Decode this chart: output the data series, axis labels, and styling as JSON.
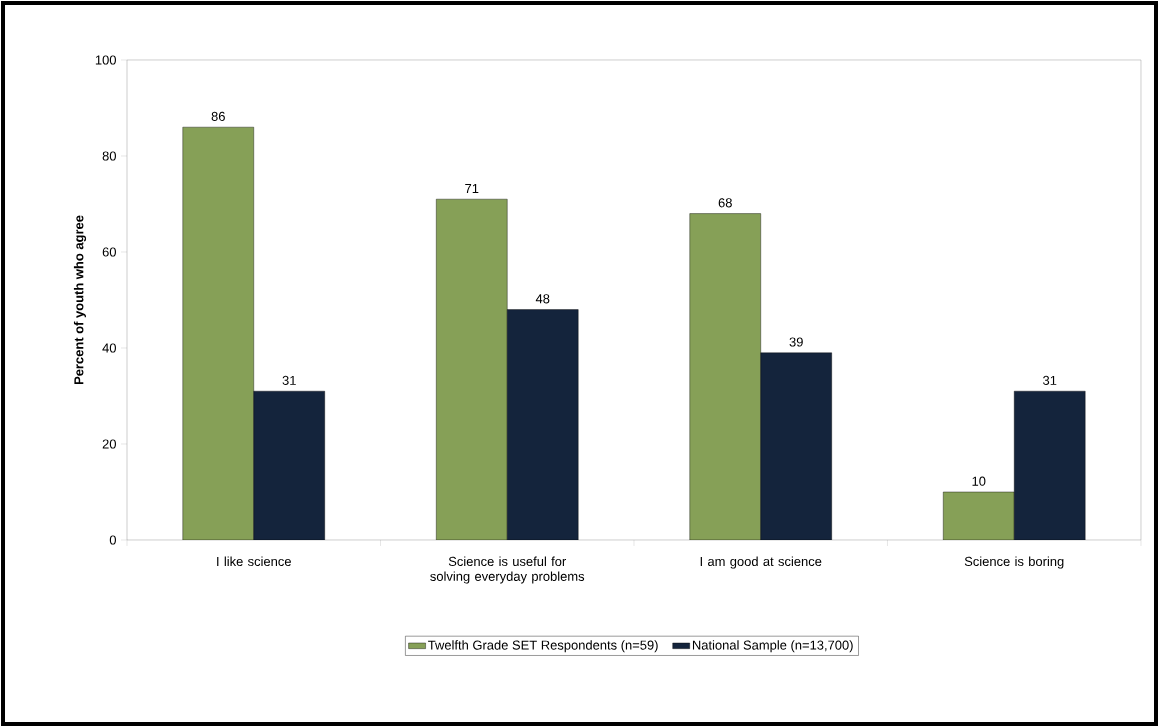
{
  "chart_data": {
    "type": "bar",
    "ylabel": "Percent of youth who agree",
    "categories": [
      "I like science",
      "Science is useful for solving everyday problems",
      "I am good at science",
      "Science is boring"
    ],
    "series": [
      {
        "name": "Twelfth Grade SET Respondents (n=59)",
        "color": "#86a057",
        "values": [
          86,
          71,
          68,
          10
        ]
      },
      {
        "name": "National Sample (n=13,700)",
        "color": "#14243c",
        "values": [
          31,
          48,
          39,
          31
        ]
      }
    ],
    "ylim": [
      0,
      100
    ],
    "yticks": [
      0,
      20,
      40,
      60,
      80,
      100
    ],
    "data_labels": true,
    "legend": "bottom"
  }
}
